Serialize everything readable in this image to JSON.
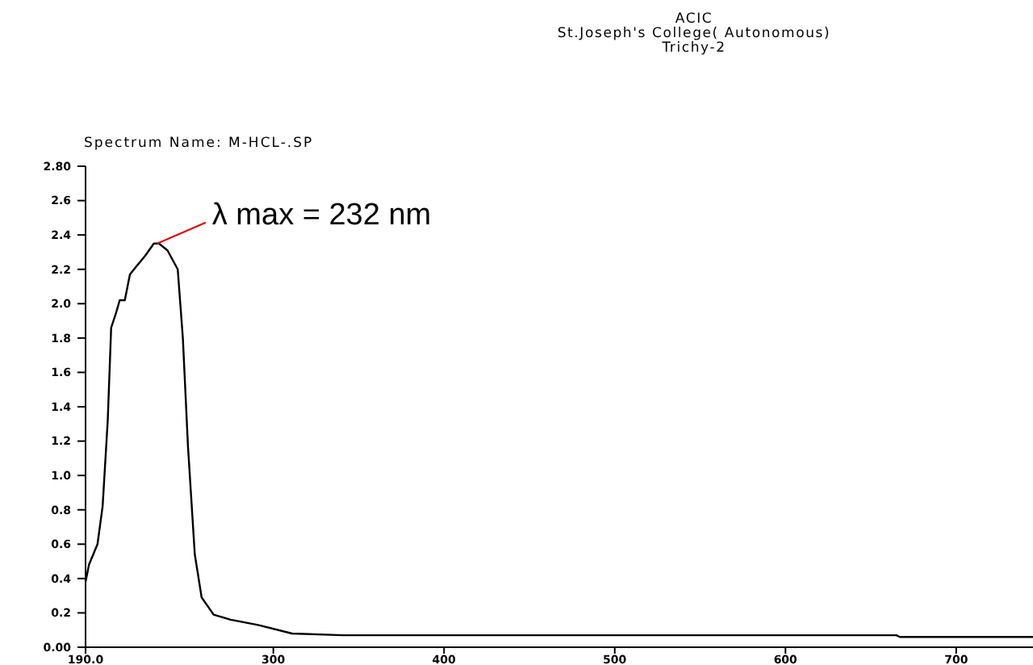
{
  "chart_data": {
    "type": "line",
    "title": "ACIC\nSt.Joseph's College( Autonomous)\nTrichy-2",
    "subtitle": "Spectrum Name: M-HCL-.SP",
    "x": [
      190,
      192,
      197,
      200,
      203,
      205,
      208,
      210,
      213,
      216,
      220,
      225,
      230,
      233,
      238,
      244,
      247,
      250,
      254,
      258,
      265,
      275,
      291,
      311,
      341,
      400,
      500,
      600,
      665,
      667,
      745
    ],
    "series": [
      {
        "color": "#000000",
        "values": [
          0.38,
          0.48,
          0.6,
          0.82,
          1.32,
          1.86,
          1.95,
          2.02,
          2.02,
          2.17,
          2.22,
          2.28,
          2.35,
          2.35,
          2.31,
          2.2,
          1.8,
          1.17,
          0.54,
          0.29,
          0.19,
          0.16,
          0.13,
          0.08,
          0.07,
          0.07,
          0.07,
          0.07,
          0.07,
          0.06,
          0.06
        ]
      }
    ],
    "xlim": [
      190,
      745
    ],
    "ylim": [
      0,
      2.8
    ],
    "xticks": [
      {
        "value": 190,
        "label": "190.0"
      },
      300,
      400,
      500,
      600,
      700
    ],
    "yticks": [
      {
        "value": 0,
        "label": "0.00"
      },
      0.2,
      0.4,
      0.6,
      0.8,
      {
        "value": 1,
        "label": "1.0"
      },
      1.2,
      1.4,
      1.6,
      1.8,
      {
        "value": 2,
        "label": "2.0"
      },
      2.2,
      2.4,
      2.6,
      {
        "value": 2.8,
        "label": "2.80"
      }
    ],
    "annotations": [
      {
        "text": "λ max = 232 nm",
        "x": 232,
        "y": 2.35
      }
    ],
    "marker": "none",
    "line_style": "solid"
  }
}
